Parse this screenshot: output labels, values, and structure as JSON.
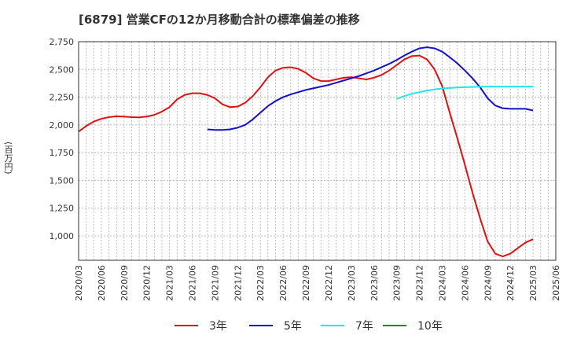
{
  "chart_data": {
    "type": "line",
    "title": "[6879]  営業CFの12か月移動合計の標準偏差の推移",
    "ylabel": "(百万円)",
    "xlabel": "",
    "ylim": [
      780,
      2750
    ],
    "yticks": [
      "2,750",
      "2,500",
      "2,250",
      "2,000",
      "1,750",
      "1,500",
      "1,250",
      "1,000"
    ],
    "ytick_values": [
      2750,
      2500,
      2250,
      2000,
      1750,
      1500,
      1250,
      1000
    ],
    "xticks": [
      "2020/03",
      "2020/06",
      "2020/09",
      "2020/12",
      "2021/03",
      "2021/06",
      "2021/09",
      "2021/12",
      "2022/03",
      "2022/06",
      "2022/09",
      "2022/12",
      "2023/03",
      "2023/06",
      "2023/09",
      "2023/12",
      "2024/03",
      "2024/06",
      "2024/09",
      "2024/12",
      "2025/03",
      "2025/06"
    ],
    "grid": true,
    "legend_position": "bottom",
    "series": [
      {
        "name": "3年",
        "color": "#dd1111",
        "points": [
          [
            "2020/03",
            1940
          ],
          [
            "2020/04",
            1990
          ],
          [
            "2020/05",
            2030
          ],
          [
            "2020/06",
            2055
          ],
          [
            "2020/07",
            2070
          ],
          [
            "2020/08",
            2078
          ],
          [
            "2020/09",
            2075
          ],
          [
            "2020/10",
            2070
          ],
          [
            "2020/11",
            2068
          ],
          [
            "2020/12",
            2075
          ],
          [
            "2021/01",
            2090
          ],
          [
            "2021/02",
            2120
          ],
          [
            "2021/03",
            2160
          ],
          [
            "2021/04",
            2230
          ],
          [
            "2021/05",
            2270
          ],
          [
            "2021/06",
            2285
          ],
          [
            "2021/07",
            2285
          ],
          [
            "2021/08",
            2270
          ],
          [
            "2021/09",
            2240
          ],
          [
            "2021/10",
            2185
          ],
          [
            "2021/11",
            2160
          ],
          [
            "2021/12",
            2165
          ],
          [
            "2022/01",
            2200
          ],
          [
            "2022/02",
            2260
          ],
          [
            "2022/03",
            2340
          ],
          [
            "2022/04",
            2430
          ],
          [
            "2022/05",
            2490
          ],
          [
            "2022/06",
            2515
          ],
          [
            "2022/07",
            2520
          ],
          [
            "2022/08",
            2505
          ],
          [
            "2022/09",
            2470
          ],
          [
            "2022/10",
            2420
          ],
          [
            "2022/11",
            2395
          ],
          [
            "2022/12",
            2395
          ],
          [
            "2023/01",
            2410
          ],
          [
            "2023/02",
            2425
          ],
          [
            "2023/03",
            2430
          ],
          [
            "2023/04",
            2420
          ],
          [
            "2023/05",
            2410
          ],
          [
            "2023/06",
            2425
          ],
          [
            "2023/07",
            2450
          ],
          [
            "2023/08",
            2490
          ],
          [
            "2023/09",
            2540
          ],
          [
            "2023/10",
            2590
          ],
          [
            "2023/11",
            2620
          ],
          [
            "2023/12",
            2625
          ],
          [
            "2024/01",
            2590
          ],
          [
            "2024/02",
            2500
          ],
          [
            "2024/03",
            2350
          ],
          [
            "2024/04",
            2110
          ],
          [
            "2024/05",
            1880
          ],
          [
            "2024/06",
            1640
          ],
          [
            "2024/07",
            1390
          ],
          [
            "2024/08",
            1160
          ],
          [
            "2024/09",
            950
          ],
          [
            "2024/10",
            840
          ],
          [
            "2024/11",
            815
          ],
          [
            "2024/12",
            840
          ],
          [
            "2025/01",
            890
          ],
          [
            "2025/02",
            940
          ],
          [
            "2025/03",
            970
          ]
        ]
      },
      {
        "name": "5年",
        "color": "#1111cc",
        "points": [
          [
            "2021/08",
            1960
          ],
          [
            "2021/09",
            1955
          ],
          [
            "2021/10",
            1955
          ],
          [
            "2021/11",
            1960
          ],
          [
            "2021/12",
            1975
          ],
          [
            "2022/01",
            2000
          ],
          [
            "2022/02",
            2050
          ],
          [
            "2022/03",
            2110
          ],
          [
            "2022/04",
            2170
          ],
          [
            "2022/05",
            2215
          ],
          [
            "2022/06",
            2250
          ],
          [
            "2022/07",
            2275
          ],
          [
            "2022/08",
            2295
          ],
          [
            "2022/09",
            2315
          ],
          [
            "2022/10",
            2330
          ],
          [
            "2022/11",
            2345
          ],
          [
            "2022/12",
            2360
          ],
          [
            "2023/01",
            2380
          ],
          [
            "2023/02",
            2400
          ],
          [
            "2023/03",
            2420
          ],
          [
            "2023/04",
            2440
          ],
          [
            "2023/05",
            2465
          ],
          [
            "2023/06",
            2490
          ],
          [
            "2023/07",
            2520
          ],
          [
            "2023/08",
            2550
          ],
          [
            "2023/09",
            2585
          ],
          [
            "2023/10",
            2625
          ],
          [
            "2023/11",
            2660
          ],
          [
            "2023/12",
            2690
          ],
          [
            "2024/01",
            2700
          ],
          [
            "2024/02",
            2690
          ],
          [
            "2024/03",
            2660
          ],
          [
            "2024/04",
            2610
          ],
          [
            "2024/05",
            2555
          ],
          [
            "2024/06",
            2490
          ],
          [
            "2024/07",
            2420
          ],
          [
            "2024/08",
            2340
          ],
          [
            "2024/09",
            2240
          ],
          [
            "2024/10",
            2175
          ],
          [
            "2024/11",
            2150
          ],
          [
            "2024/12",
            2145
          ],
          [
            "2025/01",
            2145
          ],
          [
            "2025/02",
            2145
          ],
          [
            "2025/03",
            2130
          ]
        ]
      },
      {
        "name": "7年",
        "color": "#22e5ee",
        "points": [
          [
            "2023/09",
            2235
          ],
          [
            "2023/10",
            2260
          ],
          [
            "2023/11",
            2280
          ],
          [
            "2023/12",
            2295
          ],
          [
            "2024/01",
            2310
          ],
          [
            "2024/02",
            2320
          ],
          [
            "2024/03",
            2328
          ],
          [
            "2024/04",
            2333
          ],
          [
            "2024/05",
            2337
          ],
          [
            "2024/06",
            2340
          ],
          [
            "2024/07",
            2342
          ],
          [
            "2024/08",
            2344
          ],
          [
            "2024/09",
            2345
          ],
          [
            "2024/10",
            2345
          ],
          [
            "2024/11",
            2345
          ],
          [
            "2024/12",
            2345
          ],
          [
            "2025/01",
            2345
          ],
          [
            "2025/02",
            2345
          ],
          [
            "2025/03",
            2345
          ]
        ]
      },
      {
        "name": "10年",
        "color": "#228822",
        "points": []
      }
    ]
  }
}
